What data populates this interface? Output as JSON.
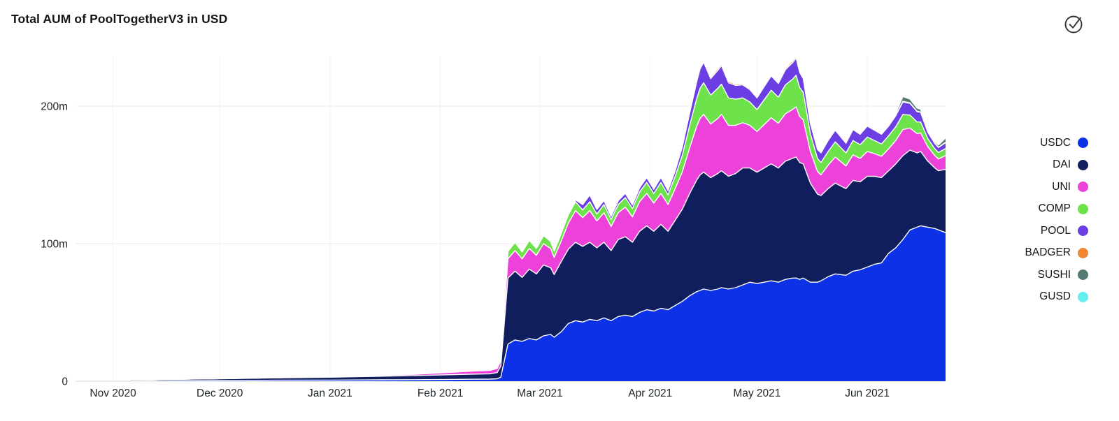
{
  "header": {
    "title": "Total AUM of PoolTogetherV3 in USD",
    "status_icon": "check-circle"
  },
  "colors": {
    "background": "#ffffff",
    "title_text": "#161616",
    "axis_text": "#21272a",
    "gridline_h": "#ebebeb",
    "gridline_v": "#f2f2f2",
    "baseline": "#d8d8d8",
    "layer_separator": "#ffffff"
  },
  "chart_data": {
    "type": "area",
    "stacked": true,
    "title": "Total AUM of PoolTogetherV3 in USD",
    "xlabel": "",
    "ylabel": "",
    "unit": "USD millions",
    "grid": "on",
    "legend_position": "right",
    "y_axis": {
      "range_m": [
        0,
        250
      ],
      "ticks": [
        {
          "label": "0",
          "value": 0
        },
        {
          "label": "100m",
          "value": 100
        },
        {
          "label": "200m",
          "value": 200
        }
      ]
    },
    "x_axis": {
      "start_label": "Nov 2020",
      "end_label": "Jun 2021",
      "ticks": [
        {
          "label": "Nov 2020",
          "day": -5
        },
        {
          "label": "Dec 2020",
          "day": 25
        },
        {
          "label": "Jan 2021",
          "day": 56
        },
        {
          "label": "Feb 2021",
          "day": 87
        },
        {
          "label": "Mar 2021",
          "day": 115
        },
        {
          "label": "Apr 2021",
          "day": 146
        },
        {
          "label": "May 2021",
          "day": 176
        },
        {
          "label": "Jun 2021",
          "day": 207
        }
      ]
    },
    "legend": [
      {
        "name": "USDC",
        "color": "#0d31e6"
      },
      {
        "name": "DAI",
        "color": "#101e5e"
      },
      {
        "name": "UNI",
        "color": "#ec42da"
      },
      {
        "name": "COMP",
        "color": "#6ee24b"
      },
      {
        "name": "POOL",
        "color": "#6c3fe4"
      },
      {
        "name": "BADGER",
        "color": "#ef8733"
      },
      {
        "name": "SUSHI",
        "color": "#547a74"
      },
      {
        "name": "GUSD",
        "color": "#62eef2"
      }
    ],
    "days": [
      0,
      12,
      25,
      40,
      56,
      70,
      80,
      87,
      95,
      101,
      103,
      104,
      106,
      108,
      110,
      112,
      114,
      116,
      118,
      119,
      121,
      123,
      125,
      127,
      129,
      131,
      133,
      135,
      137,
      139,
      141,
      143,
      145,
      147,
      149,
      151,
      153,
      155,
      157,
      159,
      160,
      161,
      163,
      165,
      166,
      168,
      170,
      172,
      174,
      176,
      178,
      180,
      182,
      184,
      186,
      187,
      188,
      189,
      191,
      193,
      194,
      196,
      198,
      201,
      203,
      205,
      207,
      209,
      211,
      213,
      215,
      217,
      219,
      221,
      222,
      224,
      226,
      227,
      229
    ],
    "series": [
      {
        "name": "USDC",
        "values_m": [
          0.3,
          0.4,
          0.5,
          0.7,
          0.8,
          1.0,
          1.1,
          1.2,
          1.4,
          1.5,
          1.8,
          3,
          27,
          30,
          29,
          31,
          30,
          33,
          34,
          32,
          36,
          42,
          44,
          43,
          45,
          44,
          46,
          44,
          47,
          48,
          47,
          50,
          52,
          51,
          53,
          52,
          55,
          58,
          62,
          65,
          66,
          67,
          66,
          67,
          68,
          67,
          68,
          70,
          72,
          71,
          72,
          73,
          72,
          74,
          75,
          75,
          74,
          75,
          72,
          72,
          73,
          76,
          78,
          77,
          80,
          81,
          83,
          85,
          86,
          93,
          97,
          103,
          110,
          112,
          113,
          112,
          111,
          110,
          108
        ]
      },
      {
        "name": "DAI",
        "values_m": [
          0.8,
          1.0,
          1.3,
          1.7,
          2.1,
          2.6,
          3.0,
          3.3,
          3.7,
          3.9,
          4.5,
          8,
          48,
          50,
          46.5,
          50.5,
          48,
          51.5,
          48.5,
          45.5,
          51,
          54,
          57,
          55,
          56,
          53,
          55,
          51,
          56,
          57,
          54,
          59,
          61,
          58,
          61,
          57,
          62,
          67,
          74,
          81,
          84,
          85,
          82,
          84,
          85,
          82,
          83,
          85,
          83,
          81,
          83,
          85,
          83,
          86,
          87,
          88,
          85,
          83,
          72,
          64,
          62,
          64,
          66,
          63,
          66,
          64,
          66,
          64,
          62,
          60,
          61,
          61,
          58,
          54,
          54,
          48,
          44,
          43,
          46
        ]
      },
      {
        "name": "UNI",
        "values_m": [
          0,
          0.05,
          0.1,
          0.15,
          0.25,
          0.6,
          1.0,
          1.5,
          2.1,
          2.5,
          3,
          4,
          14,
          15,
          13.5,
          15,
          13.5,
          15.5,
          14,
          12.5,
          15,
          19,
          23,
          21,
          23,
          19.5,
          21.5,
          17.5,
          19.5,
          21.5,
          18.5,
          21.5,
          23.5,
          20.5,
          22.5,
          19.5,
          23,
          27,
          33,
          39,
          41,
          42,
          39,
          40,
          41,
          37,
          35,
          33,
          31,
          29.5,
          31.5,
          33.5,
          32.5,
          34.5,
          35.5,
          36.5,
          33.5,
          32,
          23,
          16.5,
          15,
          17,
          19,
          16.5,
          18.5,
          17,
          18,
          16.5,
          15.5,
          16,
          17,
          19,
          16,
          14,
          13.5,
          10.5,
          9,
          8.5,
          10
        ]
      },
      {
        "name": "COMP",
        "values_m": [
          0,
          0,
          0,
          0,
          0.05,
          0.1,
          0.15,
          0.2,
          0.3,
          0.4,
          0.5,
          0.8,
          5.5,
          6,
          5,
          6,
          5.2,
          6,
          5.2,
          4.6,
          5.5,
          6,
          6.5,
          5.5,
          6.5,
          5,
          6,
          5,
          6,
          7,
          6,
          7,
          8,
          7,
          8,
          7,
          9,
          12,
          16,
          20,
          22,
          23,
          21,
          22,
          22,
          20,
          19,
          18,
          17,
          16,
          18,
          20,
          19,
          21,
          22,
          23,
          21,
          20,
          13,
          9.5,
          9,
          10,
          11,
          9.5,
          10.5,
          10,
          10.5,
          9.5,
          9,
          9.5,
          10,
          11,
          9.5,
          8.5,
          8,
          6,
          5,
          4.8,
          5.2
        ]
      },
      {
        "name": "POOL",
        "values_m": [
          0,
          0,
          0,
          0,
          0,
          0,
          0,
          0,
          0,
          0,
          0,
          0,
          0,
          0,
          0,
          0,
          0,
          0,
          0,
          0,
          0.3,
          0.8,
          1.5,
          4,
          5,
          3.5,
          3,
          2.5,
          2.8,
          3.2,
          2.8,
          3.2,
          3.6,
          3,
          3.6,
          3,
          4,
          6,
          9,
          12,
          14,
          15,
          12,
          13,
          13.5,
          11,
          10,
          9.5,
          9,
          8.5,
          9.5,
          10.5,
          10,
          11,
          12,
          12.5,
          11,
          10,
          7.5,
          6.5,
          7,
          8,
          8.5,
          7,
          8,
          7.5,
          8,
          7.5,
          7,
          7,
          8,
          9,
          8.5,
          7.5,
          7,
          4.5,
          3.8,
          3.6,
          4.2
        ]
      },
      {
        "name": "BADGER",
        "values_m": [
          0,
          0,
          0,
          0,
          0,
          0,
          0,
          0,
          0,
          0,
          0,
          0,
          0,
          0,
          0,
          0,
          0,
          0,
          0,
          0,
          0,
          0,
          0,
          0,
          0,
          0,
          0,
          0,
          0,
          0,
          0,
          0,
          0,
          0.4,
          0.5,
          0.4,
          0.5,
          0.8,
          1,
          1.4,
          1.5,
          1.6,
          1.2,
          1.5,
          1.5,
          1.2,
          1,
          1,
          0.9,
          0.8,
          1,
          1,
          1,
          1.2,
          1.5,
          1.6,
          1.2,
          1,
          0.5,
          0.3,
          0.3,
          0.3,
          0.3,
          0.3,
          0.3,
          0.3,
          0.3,
          0.3,
          0.2,
          0.3,
          0.4,
          0.5,
          0.4,
          0.3,
          0.3,
          0.2,
          0.2,
          0.2,
          0.3
        ]
      },
      {
        "name": "SUSHI",
        "values_m": [
          0,
          0,
          0,
          0,
          0,
          0,
          0,
          0,
          0,
          0,
          0,
          0,
          0,
          0,
          0,
          0,
          0,
          0,
          0,
          0,
          0,
          0,
          0,
          0,
          0,
          0,
          0,
          0,
          0,
          0,
          0,
          0,
          0,
          0,
          0,
          0,
          0,
          0,
          0,
          0,
          0,
          0,
          0,
          0,
          0,
          0,
          0,
          0,
          0,
          0,
          0,
          0,
          0,
          0,
          0,
          0,
          0,
          0,
          0,
          0,
          0,
          0,
          0.4,
          0.2,
          0.3,
          0.2,
          0.3,
          0.2,
          0.2,
          0.4,
          1.5,
          3.5,
          2.8,
          2.3,
          2,
          1.4,
          1.2,
          1.6,
          3.2
        ]
      },
      {
        "name": "GUSD",
        "values_m": [
          0,
          0,
          0,
          0,
          0,
          0,
          0,
          0,
          0,
          0,
          0,
          0,
          0,
          0,
          0,
          0,
          0,
          0,
          0,
          0,
          0,
          0,
          0,
          0,
          0,
          0,
          0,
          0,
          0,
          0,
          0,
          0,
          0,
          0,
          0,
          0,
          0,
          0,
          0,
          0,
          0,
          0,
          0,
          0,
          0,
          0,
          0,
          0,
          0,
          0,
          0,
          0,
          0,
          0,
          0,
          0,
          0,
          0,
          0,
          0,
          0,
          0,
          0,
          0,
          0,
          0,
          0,
          0,
          0,
          0,
          0,
          0,
          0,
          0,
          0,
          0,
          0,
          0,
          0
        ]
      }
    ]
  }
}
